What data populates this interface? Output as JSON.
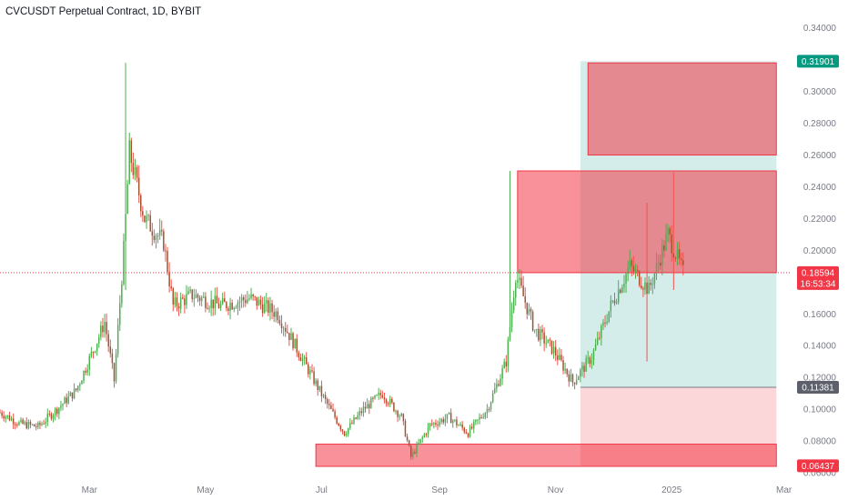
{
  "header": {
    "title": "CVCUSDT Perpetual Contract, 1D, BYBIT"
  },
  "colors": {
    "up": "#26a69a",
    "up_body": "#4caf50",
    "down": "#ef5350",
    "down_body": "#a0522d",
    "axis_text": "#787b86",
    "zone_red": "#f23645",
    "zone_teal": "#26a69a",
    "tag_green": "#089981",
    "tag_red": "#f23645",
    "tag_grey": "#5d606b"
  },
  "chart_data": {
    "type": "candlestick",
    "title": "CVCUSDT Perpetual Contract, 1D, BYBIT",
    "x_range": [
      "2024-01-14",
      "2025-03-05"
    ],
    "y_range": [
      0.06,
      0.345
    ],
    "y_ticks": [
      "0.34000",
      "0.32000",
      "0.30000",
      "0.28000",
      "0.26000",
      "0.24000",
      "0.22000",
      "0.20000",
      "0.18000",
      "0.16000",
      "0.14000",
      "0.12000",
      "0.10000",
      "0.08000",
      "0.06000"
    ],
    "x_ticks": [
      {
        "label": "Mar",
        "date": "2024-03-01"
      },
      {
        "label": "May",
        "date": "2024-05-01"
      },
      {
        "label": "Jul",
        "date": "2024-07-01"
      },
      {
        "label": "Sep",
        "date": "2024-09-01"
      },
      {
        "label": "Nov",
        "date": "2024-11-01"
      },
      {
        "label": "2025",
        "date": "2025-01-01"
      },
      {
        "label": "Mar",
        "date": "2025-03-01"
      }
    ],
    "price_path": [
      [
        "2024-01-14",
        0.098
      ],
      [
        "2024-01-24",
        0.091
      ],
      [
        "2024-02-03",
        0.089
      ],
      [
        "2024-02-13",
        0.1
      ],
      [
        "2024-02-23",
        0.112
      ],
      [
        "2024-03-04",
        0.14
      ],
      [
        "2024-03-09",
        0.155
      ],
      [
        "2024-03-14",
        0.118
      ],
      [
        "2024-03-19",
        0.2
      ],
      [
        "2024-03-22",
        0.262
      ],
      [
        "2024-03-30",
        0.22
      ],
      [
        "2024-04-09",
        0.205
      ],
      [
        "2024-04-14",
        0.165
      ],
      [
        "2024-04-24",
        0.172
      ],
      [
        "2024-05-09",
        0.165
      ],
      [
        "2024-05-24",
        0.17
      ],
      [
        "2024-06-08",
        0.16
      ],
      [
        "2024-06-23",
        0.127
      ],
      [
        "2024-07-03",
        0.105
      ],
      [
        "2024-07-13",
        0.085
      ],
      [
        "2024-07-23",
        0.1
      ],
      [
        "2024-08-02",
        0.11
      ],
      [
        "2024-08-12",
        0.095
      ],
      [
        "2024-08-17",
        0.07
      ],
      [
        "2024-08-27",
        0.09
      ],
      [
        "2024-09-06",
        0.095
      ],
      [
        "2024-09-16",
        0.085
      ],
      [
        "2024-09-26",
        0.1
      ],
      [
        "2024-10-06",
        0.13
      ],
      [
        "2024-10-11",
        0.185
      ],
      [
        "2024-10-21",
        0.15
      ],
      [
        "2024-10-31",
        0.137
      ],
      [
        "2024-11-10",
        0.117
      ],
      [
        "2024-11-20",
        0.133
      ],
      [
        "2024-11-30",
        0.165
      ],
      [
        "2024-12-10",
        0.19
      ],
      [
        "2024-12-20",
        0.175
      ],
      [
        "2024-12-30",
        0.21
      ],
      [
        "2025-01-07",
        0.186
      ]
    ],
    "wicks": [
      {
        "date": "2024-03-20",
        "high": 0.318,
        "low": 0.175
      },
      {
        "date": "2024-10-08",
        "high": 0.25,
        "low": 0.165
      },
      {
        "date": "2024-12-19",
        "high": 0.23,
        "low": 0.13
      },
      {
        "date": "2025-01-02",
        "high": 0.249,
        "low": 0.175
      }
    ],
    "current_price_line": 0.18594,
    "zones": [
      {
        "kind": "supply",
        "from": "2024-11-18",
        "to": "2025-02-25",
        "top": 0.318,
        "bottom": 0.26
      },
      {
        "kind": "supply",
        "from": "2024-10-12",
        "to": "2025-02-25",
        "top": 0.25,
        "bottom": 0.18594
      },
      {
        "kind": "demand",
        "from": "2024-06-28",
        "to": "2025-02-25",
        "top": 0.078,
        "bottom": 0.064
      }
    ],
    "position": {
      "from": "2024-11-14",
      "to": "2025-02-25",
      "target": 0.319,
      "entry": 0.11381,
      "stop": 0.06437
    },
    "price_tags": [
      {
        "label": "0.31901",
        "value": 0.31901,
        "color": "#089981"
      },
      {
        "label": "0.18594",
        "sub": "16:53:34",
        "value": 0.18594,
        "color": "#f23645"
      },
      {
        "label": "0.11381",
        "value": 0.11381,
        "color": "#5d606b"
      },
      {
        "label": "0.06437",
        "value": 0.06437,
        "color": "#f23645"
      }
    ]
  }
}
